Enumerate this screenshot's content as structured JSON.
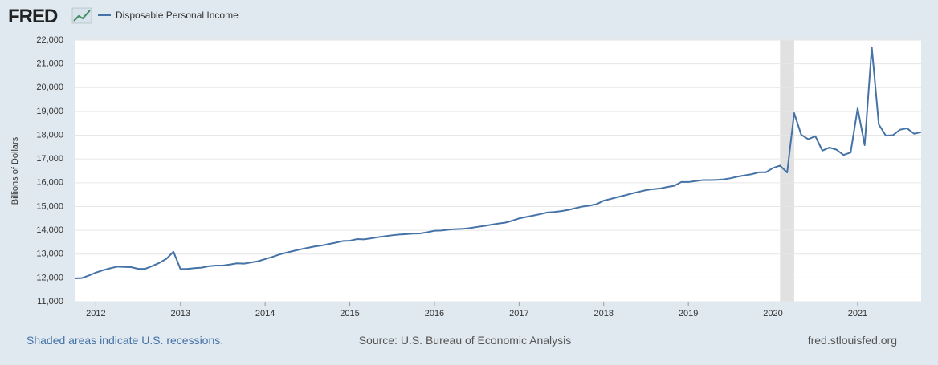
{
  "header": {
    "logo": "FRED"
  },
  "chart_data": {
    "type": "line",
    "y_axis_label": "Billions of Dollars",
    "x": [
      2011.75,
      2011.833,
      2011.917,
      2012,
      2012.083,
      2012.167,
      2012.25,
      2012.333,
      2012.417,
      2012.5,
      2012.583,
      2012.667,
      2012.75,
      2012.833,
      2012.917,
      2013,
      2013.083,
      2013.167,
      2013.25,
      2013.333,
      2013.417,
      2013.5,
      2013.583,
      2013.667,
      2013.75,
      2013.833,
      2013.917,
      2014,
      2014.083,
      2014.167,
      2014.25,
      2014.333,
      2014.417,
      2014.5,
      2014.583,
      2014.667,
      2014.75,
      2014.833,
      2014.917,
      2015,
      2015.083,
      2015.167,
      2015.25,
      2015.333,
      2015.417,
      2015.5,
      2015.583,
      2015.667,
      2015.75,
      2015.833,
      2015.917,
      2016,
      2016.083,
      2016.167,
      2016.25,
      2016.333,
      2016.417,
      2016.5,
      2016.583,
      2016.667,
      2016.75,
      2016.833,
      2016.917,
      2017,
      2017.083,
      2017.167,
      2017.25,
      2017.333,
      2017.417,
      2017.5,
      2017.583,
      2017.667,
      2017.75,
      2017.833,
      2017.917,
      2018,
      2018.083,
      2018.167,
      2018.25,
      2018.333,
      2018.417,
      2018.5,
      2018.583,
      2018.667,
      2018.75,
      2018.833,
      2018.917,
      2019,
      2019.083,
      2019.167,
      2019.25,
      2019.333,
      2019.417,
      2019.5,
      2019.583,
      2019.667,
      2019.75,
      2019.833,
      2019.917,
      2020,
      2020.083,
      2020.167,
      2020.25,
      2020.333,
      2020.417,
      2020.5,
      2020.583,
      2020.667,
      2020.75,
      2020.833,
      2020.917,
      2021,
      2021.083,
      2021.167,
      2021.25,
      2021.333,
      2021.417,
      2021.5,
      2021.583,
      2021.667,
      2021.75
    ],
    "series": [
      {
        "name": "Disposable Personal Income",
        "color": "#4572a7",
        "values": [
          11980,
          11990,
          12100,
          12220,
          12320,
          12400,
          12470,
          12460,
          12450,
          12380,
          12380,
          12500,
          12630,
          12800,
          13100,
          12370,
          12380,
          12410,
          12430,
          12490,
          12520,
          12520,
          12560,
          12610,
          12600,
          12650,
          12700,
          12790,
          12880,
          12980,
          13060,
          13130,
          13200,
          13260,
          13320,
          13360,
          13420,
          13480,
          13550,
          13560,
          13630,
          13620,
          13660,
          13710,
          13750,
          13790,
          13820,
          13840,
          13860,
          13870,
          13920,
          13980,
          13990,
          14030,
          14050,
          14060,
          14090,
          14140,
          14180,
          14230,
          14280,
          14320,
          14400,
          14500,
          14560,
          14620,
          14680,
          14750,
          14770,
          14810,
          14860,
          14930,
          15000,
          15040,
          15100,
          15250,
          15320,
          15400,
          15470,
          15550,
          15620,
          15690,
          15730,
          15760,
          15820,
          15870,
          16030,
          16030,
          16070,
          16110,
          16110,
          16120,
          16140,
          16190,
          16260,
          16310,
          16360,
          16440,
          16440,
          16620,
          16720,
          16430,
          18930,
          18020,
          17830,
          17960,
          17350,
          17480,
          17390,
          17170,
          17270,
          19130,
          17580,
          21700,
          18450,
          17980,
          18000,
          18230,
          18290,
          18060,
          18130
        ]
      }
    ],
    "recessions": [
      [
        2020.083,
        2020.25
      ]
    ],
    "xlim": [
      2011.75,
      2021.75
    ],
    "xticks": [
      2012,
      2013,
      2014,
      2015,
      2016,
      2017,
      2018,
      2019,
      2020,
      2021
    ],
    "ylim": [
      11000,
      22000
    ],
    "yticks": [
      {
        "value": 11000,
        "label": "11,000"
      },
      {
        "value": 12000,
        "label": "12,000"
      },
      {
        "value": 13000,
        "label": "13,000"
      },
      {
        "value": 14000,
        "label": "14,000"
      },
      {
        "value": 15000,
        "label": "15,000"
      },
      {
        "value": 16000,
        "label": "16,000"
      },
      {
        "value": 17000,
        "label": "17,000"
      },
      {
        "value": 18000,
        "label": "18,000"
      },
      {
        "value": 19000,
        "label": "19,000"
      },
      {
        "value": 20000,
        "label": "20,000"
      },
      {
        "value": 21000,
        "label": "21,000"
      },
      {
        "value": 22000,
        "label": "22,000"
      }
    ],
    "grid": true
  },
  "footer": {
    "note": "Shaded areas indicate U.S. recessions.",
    "source": "Source: U.S. Bureau of Economic Analysis",
    "site": "fred.stlouisfed.org"
  }
}
